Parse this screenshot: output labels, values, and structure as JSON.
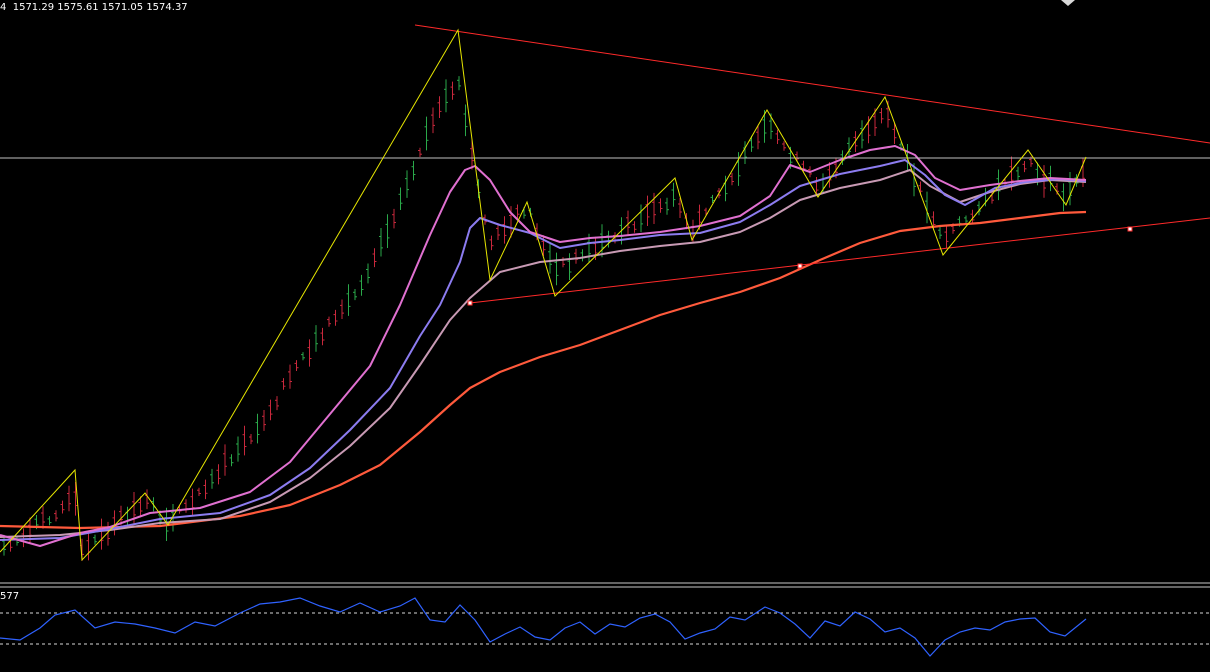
{
  "header": {
    "ohlc_text": "4  1571.29 1575.61 1571.05 1574.37"
  },
  "indicator": {
    "label": "577"
  },
  "colors": {
    "background": "#000000",
    "bull_candle": "#2aa84a",
    "bear_candle": "#c8283c",
    "zigzag": "#e6e600",
    "trendline": "#ff2a2a",
    "horizontal_line": "#bfbfbf",
    "ma_fast": "#e070d0",
    "ma_mid": "#8c7cf0",
    "ma_slow": "#c89ab4",
    "ma_long": "#ff5a3c",
    "oscillator": "#2f62ff",
    "level_lines": "#d8d8d8"
  },
  "chart_data": {
    "type": "line",
    "zigzag": [
      [
        0,
        552
      ],
      [
        75,
        470
      ],
      [
        82,
        560
      ],
      [
        145,
        493
      ],
      [
        168,
        525
      ],
      [
        458,
        30
      ],
      [
        490,
        280
      ],
      [
        527,
        202
      ],
      [
        555,
        296
      ],
      [
        675,
        178
      ],
      [
        692,
        240
      ],
      [
        767,
        110
      ],
      [
        818,
        197
      ],
      [
        885,
        97
      ],
      [
        943,
        255
      ],
      [
        1028,
        150
      ],
      [
        1066,
        205
      ],
      [
        1086,
        157
      ]
    ],
    "trendlines": [
      [
        [
          415,
          25
        ],
        [
          1210,
          143
        ]
      ],
      [
        [
          470,
          303
        ],
        [
          1210,
          218
        ]
      ]
    ],
    "horizontal_level": 158,
    "markers": [
      [
        470,
        303
      ],
      [
        800,
        266
      ],
      [
        1130,
        229
      ]
    ],
    "series": [
      {
        "key": "ma_long",
        "points": [
          [
            0,
            526
          ],
          [
            80,
            528
          ],
          [
            160,
            526
          ],
          [
            240,
            516
          ],
          [
            290,
            505
          ],
          [
            340,
            485
          ],
          [
            380,
            465
          ],
          [
            420,
            432
          ],
          [
            450,
            405
          ],
          [
            470,
            388
          ],
          [
            500,
            372
          ],
          [
            540,
            357
          ],
          [
            580,
            345
          ],
          [
            620,
            330
          ],
          [
            660,
            315
          ],
          [
            700,
            303
          ],
          [
            740,
            292
          ],
          [
            780,
            278
          ],
          [
            820,
            260
          ],
          [
            860,
            243
          ],
          [
            900,
            231
          ],
          [
            940,
            226
          ],
          [
            980,
            223
          ],
          [
            1020,
            218
          ],
          [
            1060,
            213
          ],
          [
            1086,
            212
          ]
        ]
      },
      {
        "key": "ma_slow",
        "points": [
          [
            0,
            537
          ],
          [
            60,
            535
          ],
          [
            110,
            530
          ],
          [
            160,
            523
          ],
          [
            220,
            519
          ],
          [
            270,
            502
          ],
          [
            310,
            478
          ],
          [
            350,
            446
          ],
          [
            390,
            408
          ],
          [
            420,
            365
          ],
          [
            450,
            320
          ],
          [
            470,
            298
          ],
          [
            500,
            272
          ],
          [
            540,
            262
          ],
          [
            580,
            258
          ],
          [
            620,
            251
          ],
          [
            660,
            246
          ],
          [
            700,
            242
          ],
          [
            740,
            232
          ],
          [
            770,
            218
          ],
          [
            800,
            200
          ],
          [
            840,
            188
          ],
          [
            880,
            180
          ],
          [
            910,
            170
          ],
          [
            930,
            186
          ],
          [
            960,
            202
          ],
          [
            990,
            192
          ],
          [
            1020,
            184
          ],
          [
            1050,
            180
          ],
          [
            1086,
            182
          ]
        ]
      },
      {
        "key": "ma_mid",
        "points": [
          [
            0,
            540
          ],
          [
            60,
            538
          ],
          [
            110,
            529
          ],
          [
            160,
            519
          ],
          [
            220,
            513
          ],
          [
            270,
            495
          ],
          [
            310,
            468
          ],
          [
            350,
            430
          ],
          [
            390,
            388
          ],
          [
            420,
            336
          ],
          [
            440,
            305
          ],
          [
            460,
            262
          ],
          [
            470,
            228
          ],
          [
            480,
            218
          ],
          [
            500,
            225
          ],
          [
            530,
            233
          ],
          [
            560,
            248
          ],
          [
            590,
            243
          ],
          [
            620,
            240
          ],
          [
            660,
            235
          ],
          [
            700,
            233
          ],
          [
            740,
            222
          ],
          [
            770,
            205
          ],
          [
            800,
            186
          ],
          [
            840,
            174
          ],
          [
            880,
            166
          ],
          [
            905,
            160
          ],
          [
            925,
            175
          ],
          [
            945,
            195
          ],
          [
            965,
            205
          ],
          [
            995,
            188
          ],
          [
            1025,
            182
          ],
          [
            1060,
            179
          ],
          [
            1086,
            181
          ]
        ]
      },
      {
        "key": "ma_fast",
        "points": [
          [
            0,
            535
          ],
          [
            40,
            546
          ],
          [
            80,
            533
          ],
          [
            110,
            527
          ],
          [
            150,
            513
          ],
          [
            200,
            508
          ],
          [
            250,
            492
          ],
          [
            290,
            462
          ],
          [
            330,
            414
          ],
          [
            370,
            366
          ],
          [
            400,
            305
          ],
          [
            430,
            235
          ],
          [
            450,
            192
          ],
          [
            465,
            170
          ],
          [
            475,
            166
          ],
          [
            490,
            180
          ],
          [
            510,
            212
          ],
          [
            530,
            232
          ],
          [
            560,
            242
          ],
          [
            590,
            238
          ],
          [
            620,
            236
          ],
          [
            660,
            232
          ],
          [
            700,
            226
          ],
          [
            740,
            216
          ],
          [
            770,
            196
          ],
          [
            790,
            165
          ],
          [
            810,
            172
          ],
          [
            840,
            160
          ],
          [
            870,
            150
          ],
          [
            895,
            146
          ],
          [
            915,
            155
          ],
          [
            935,
            178
          ],
          [
            960,
            190
          ],
          [
            990,
            185
          ],
          [
            1020,
            181
          ],
          [
            1050,
            178
          ],
          [
            1086,
            180
          ]
        ]
      }
    ],
    "oscillator": {
      "levels": [
        613,
        644
      ],
      "points": [
        [
          0,
          638
        ],
        [
          20,
          640
        ],
        [
          40,
          628
        ],
        [
          55,
          615
        ],
        [
          75,
          610
        ],
        [
          95,
          628
        ],
        [
          115,
          622
        ],
        [
          135,
          624
        ],
        [
          155,
          628
        ],
        [
          175,
          633
        ],
        [
          195,
          622
        ],
        [
          215,
          626
        ],
        [
          240,
          613
        ],
        [
          260,
          604
        ],
        [
          280,
          602
        ],
        [
          300,
          598
        ],
        [
          320,
          606
        ],
        [
          340,
          612
        ],
        [
          360,
          603
        ],
        [
          380,
          612
        ],
        [
          400,
          606
        ],
        [
          415,
          598
        ],
        [
          430,
          620
        ],
        [
          445,
          622
        ],
        [
          460,
          605
        ],
        [
          475,
          620
        ],
        [
          490,
          642
        ],
        [
          505,
          634
        ],
        [
          520,
          627
        ],
        [
          535,
          637
        ],
        [
          550,
          640
        ],
        [
          565,
          628
        ],
        [
          580,
          622
        ],
        [
          595,
          634
        ],
        [
          610,
          624
        ],
        [
          625,
          627
        ],
        [
          640,
          618
        ],
        [
          655,
          614
        ],
        [
          670,
          622
        ],
        [
          685,
          639
        ],
        [
          700,
          633
        ],
        [
          715,
          629
        ],
        [
          730,
          617
        ],
        [
          745,
          620
        ],
        [
          765,
          607
        ],
        [
          780,
          613
        ],
        [
          795,
          624
        ],
        [
          810,
          638
        ],
        [
          825,
          621
        ],
        [
          840,
          626
        ],
        [
          855,
          612
        ],
        [
          870,
          619
        ],
        [
          885,
          632
        ],
        [
          900,
          628
        ],
        [
          915,
          638
        ],
        [
          930,
          656
        ],
        [
          945,
          640
        ],
        [
          960,
          632
        ],
        [
          975,
          628
        ],
        [
          990,
          630
        ],
        [
          1005,
          622
        ],
        [
          1020,
          619
        ],
        [
          1035,
          618
        ],
        [
          1050,
          632
        ],
        [
          1065,
          636
        ],
        [
          1086,
          619
        ]
      ]
    },
    "candles": {
      "x_start": 4,
      "x_end": 1084,
      "step": 6.5,
      "bands": [
        [
          0,
          552
        ],
        [
          75,
          520
        ],
        [
          82,
          548
        ],
        [
          145,
          505
        ],
        [
          168,
          520
        ],
        [
          260,
          480
        ],
        [
          300,
          410
        ],
        [
          360,
          360
        ],
        [
          400,
          260
        ],
        [
          430,
          170
        ],
        [
          458,
          120
        ],
        [
          470,
          165
        ],
        [
          490,
          215
        ],
        [
          527,
          210
        ],
        [
          555,
          250
        ],
        [
          675,
          215
        ],
        [
          692,
          225
        ],
        [
          767,
          140
        ],
        [
          818,
          175
        ],
        [
          885,
          125
        ],
        [
          943,
          225
        ],
        [
          1028,
          175
        ],
        [
          1066,
          190
        ],
        [
          1086,
          180
        ]
      ]
    }
  }
}
